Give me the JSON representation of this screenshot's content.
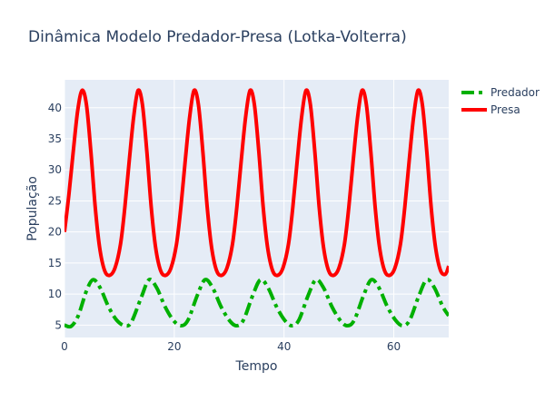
{
  "chart_data": {
    "type": "line",
    "title": "Dinâmica Modelo Predador-Presa (Lotka-Volterra)",
    "xlabel": "Tempo",
    "ylabel": "População",
    "xlim": [
      0,
      70
    ],
    "ylim": [
      3,
      44.5
    ],
    "xticks": [
      0,
      20,
      40,
      60
    ],
    "yticks": [
      5,
      10,
      15,
      20,
      25,
      30,
      35,
      40
    ],
    "grid": true,
    "legend_position": "top-right",
    "series": [
      {
        "name": "Predador",
        "color": "#00b000",
        "dash": "dashdot",
        "points": [
          [
            0,
            5.0
          ],
          [
            1.2,
            4.8
          ],
          [
            2.5,
            6.5
          ],
          [
            4.0,
            10.5
          ],
          [
            5.2,
            12.3
          ],
          [
            6.5,
            11.0
          ],
          [
            8.0,
            8.0
          ],
          [
            9.5,
            5.8
          ],
          [
            11.0,
            4.9
          ],
          [
            12.2,
            5.5
          ],
          [
            14.0,
            9.5
          ],
          [
            15.4,
            12.3
          ],
          [
            16.8,
            11.0
          ],
          [
            18.3,
            8.0
          ],
          [
            19.8,
            5.8
          ],
          [
            21.2,
            4.9
          ],
          [
            22.5,
            5.8
          ],
          [
            24.2,
            9.8
          ],
          [
            25.6,
            12.3
          ],
          [
            27.0,
            11.0
          ],
          [
            28.5,
            8.0
          ],
          [
            30.0,
            5.8
          ],
          [
            31.3,
            4.9
          ],
          [
            32.6,
            5.8
          ],
          [
            34.3,
            9.8
          ],
          [
            35.7,
            12.3
          ],
          [
            37.1,
            11.0
          ],
          [
            38.6,
            8.0
          ],
          [
            40.1,
            5.8
          ],
          [
            41.4,
            4.9
          ],
          [
            42.7,
            5.8
          ],
          [
            44.4,
            9.8
          ],
          [
            45.8,
            12.3
          ],
          [
            47.2,
            11.0
          ],
          [
            48.7,
            8.0
          ],
          [
            50.2,
            5.8
          ],
          [
            51.5,
            4.9
          ],
          [
            52.8,
            5.8
          ],
          [
            54.5,
            9.8
          ],
          [
            55.9,
            12.3
          ],
          [
            57.3,
            11.0
          ],
          [
            58.8,
            8.0
          ],
          [
            60.3,
            5.8
          ],
          [
            61.6,
            4.9
          ],
          [
            62.9,
            5.8
          ],
          [
            64.6,
            9.8
          ],
          [
            66.0,
            12.3
          ],
          [
            67.4,
            11.0
          ],
          [
            68.9,
            8.0
          ],
          [
            70.0,
            6.5
          ]
        ]
      },
      {
        "name": "Presa",
        "color": "#ff0000",
        "dash": "solid",
        "points": [
          [
            0,
            20.0
          ],
          [
            0.8,
            26.0
          ],
          [
            1.6,
            33.0
          ],
          [
            2.4,
            39.5
          ],
          [
            3.2,
            42.8
          ],
          [
            4.0,
            40.5
          ],
          [
            4.8,
            33.0
          ],
          [
            5.6,
            24.0
          ],
          [
            6.4,
            17.5
          ],
          [
            7.3,
            13.8
          ],
          [
            8.2,
            13.0
          ],
          [
            9.2,
            14.2
          ],
          [
            10.2,
            18.0
          ],
          [
            11.0,
            24.0
          ],
          [
            11.8,
            31.5
          ],
          [
            12.6,
            38.5
          ],
          [
            13.4,
            42.8
          ],
          [
            14.2,
            40.5
          ],
          [
            15.0,
            33.0
          ],
          [
            15.8,
            24.0
          ],
          [
            16.6,
            17.5
          ],
          [
            17.5,
            13.8
          ],
          [
            18.4,
            13.0
          ],
          [
            19.4,
            14.2
          ],
          [
            20.4,
            18.0
          ],
          [
            21.2,
            24.0
          ],
          [
            22.0,
            31.5
          ],
          [
            22.8,
            38.5
          ],
          [
            23.6,
            42.8
          ],
          [
            24.4,
            40.5
          ],
          [
            25.2,
            33.0
          ],
          [
            26.0,
            24.0
          ],
          [
            26.8,
            17.5
          ],
          [
            27.7,
            13.8
          ],
          [
            28.6,
            13.0
          ],
          [
            29.6,
            14.2
          ],
          [
            30.6,
            18.0
          ],
          [
            31.4,
            24.0
          ],
          [
            32.2,
            31.5
          ],
          [
            33.0,
            38.5
          ],
          [
            33.8,
            42.8
          ],
          [
            34.6,
            40.5
          ],
          [
            35.4,
            33.0
          ],
          [
            36.2,
            24.0
          ],
          [
            37.0,
            17.5
          ],
          [
            37.9,
            13.8
          ],
          [
            38.8,
            13.0
          ],
          [
            39.8,
            14.2
          ],
          [
            40.8,
            18.0
          ],
          [
            41.6,
            24.0
          ],
          [
            42.4,
            31.5
          ],
          [
            43.2,
            38.5
          ],
          [
            44.0,
            42.8
          ],
          [
            44.8,
            40.5
          ],
          [
            45.6,
            33.0
          ],
          [
            46.4,
            24.0
          ],
          [
            47.2,
            17.5
          ],
          [
            48.1,
            13.8
          ],
          [
            49.0,
            13.0
          ],
          [
            50.0,
            14.2
          ],
          [
            51.0,
            18.0
          ],
          [
            51.8,
            24.0
          ],
          [
            52.6,
            31.5
          ],
          [
            53.4,
            38.5
          ],
          [
            54.2,
            42.8
          ],
          [
            55.0,
            40.5
          ],
          [
            55.8,
            33.0
          ],
          [
            56.6,
            24.0
          ],
          [
            57.4,
            17.5
          ],
          [
            58.3,
            13.8
          ],
          [
            59.2,
            13.0
          ],
          [
            60.2,
            14.2
          ],
          [
            61.2,
            18.0
          ],
          [
            62.0,
            24.0
          ],
          [
            62.8,
            31.5
          ],
          [
            63.6,
            38.5
          ],
          [
            64.4,
            42.8
          ],
          [
            65.2,
            40.5
          ],
          [
            66.0,
            33.0
          ],
          [
            66.8,
            24.0
          ],
          [
            67.6,
            17.5
          ],
          [
            68.5,
            13.8
          ],
          [
            69.4,
            13.2
          ],
          [
            70.0,
            14.5
          ]
        ]
      }
    ]
  }
}
